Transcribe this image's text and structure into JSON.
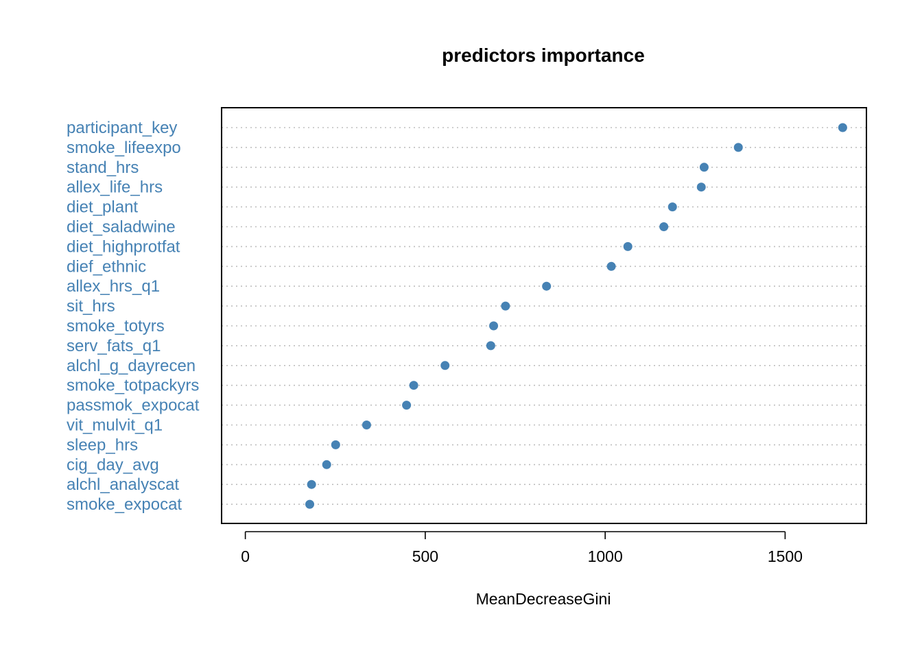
{
  "chart_data": {
    "type": "scatter",
    "title": "predictors importance",
    "xlabel": "MeanDecreaseGini",
    "ylabel": "",
    "xlim": [
      -66,
      1726
    ],
    "xticks": [
      0,
      500,
      1000,
      1500
    ],
    "grid": "dotted horizontal lines per category",
    "categories": [
      "participant_key",
      "smoke_lifeexpo",
      "stand_hrs",
      "allex_life_hrs",
      "diet_plant",
      "diet_saladwine",
      "diet_highprotfat",
      "dief_ethnic",
      "allex_hrs_q1",
      "sit_hrs",
      "smoke_totyrs",
      "serv_fats_q1",
      "alchl_g_dayrecen",
      "smoke_totpackyrs",
      "passmok_expocat",
      "vit_mulvit_q1",
      "sleep_hrs",
      "cig_day_avg",
      "alchl_analyscat",
      "smoke_expocat"
    ],
    "values": [
      1660,
      1370,
      1275,
      1267,
      1187,
      1163,
      1063,
      1017,
      837,
      723,
      690,
      682,
      555,
      468,
      448,
      337,
      251,
      226,
      184,
      179
    ],
    "colors": {
      "point": "#4682B4",
      "label": "#4682B4",
      "grid": "#BEBEBE",
      "axis": "#000000"
    }
  }
}
